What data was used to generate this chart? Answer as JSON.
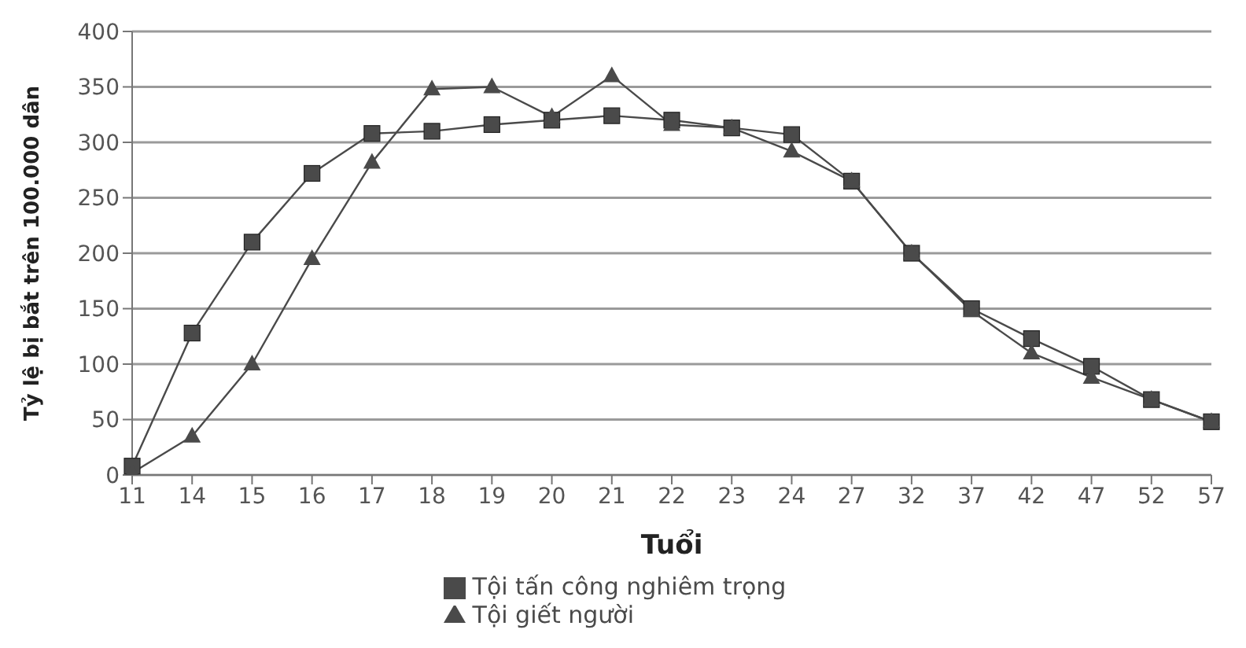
{
  "chart_data": {
    "type": "line",
    "xlabel": "Tuổi",
    "ylabel": "Tỷ lệ bị bắt trên 100.000 dân",
    "categories": [
      "11",
      "14",
      "15",
      "16",
      "17",
      "18",
      "19",
      "20",
      "21",
      "22",
      "23",
      "24",
      "27",
      "32",
      "37",
      "42",
      "47",
      "52",
      "57"
    ],
    "series": [
      {
        "name": "Tội tấn công nghiêm trọng",
        "color": "#4a4a4a",
        "marker": "square",
        "values": [
          8,
          128,
          210,
          272,
          308,
          310,
          316,
          320,
          324,
          320,
          313,
          307,
          265,
          200,
          150,
          123,
          98,
          68,
          48
        ]
      },
      {
        "name": "Tội giết người",
        "color": "#4a4a4a",
        "marker": "triangle",
        "values": [
          2,
          35,
          100,
          195,
          282,
          348,
          350,
          323,
          360,
          316,
          313,
          292,
          265,
          200,
          148,
          110,
          88,
          68,
          48
        ]
      }
    ],
    "ylim": [
      0,
      400
    ],
    "yticks": [
      0,
      50,
      100,
      150,
      200,
      250,
      300,
      350,
      400
    ],
    "grid": "y",
    "legend": "bottom",
    "line_style": "solid"
  }
}
